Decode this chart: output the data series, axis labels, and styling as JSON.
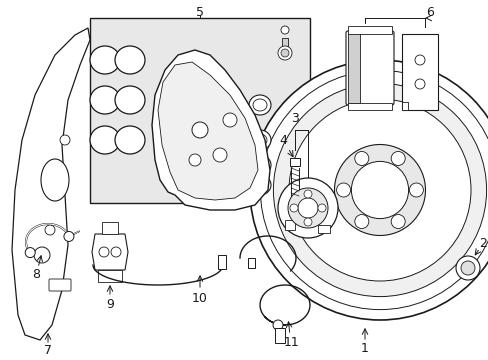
{
  "bg_color": "#ffffff",
  "line_color": "#1a1a1a",
  "box_bg": "#e8e8e8",
  "figsize": [
    4.89,
    3.6
  ],
  "dpi": 100
}
